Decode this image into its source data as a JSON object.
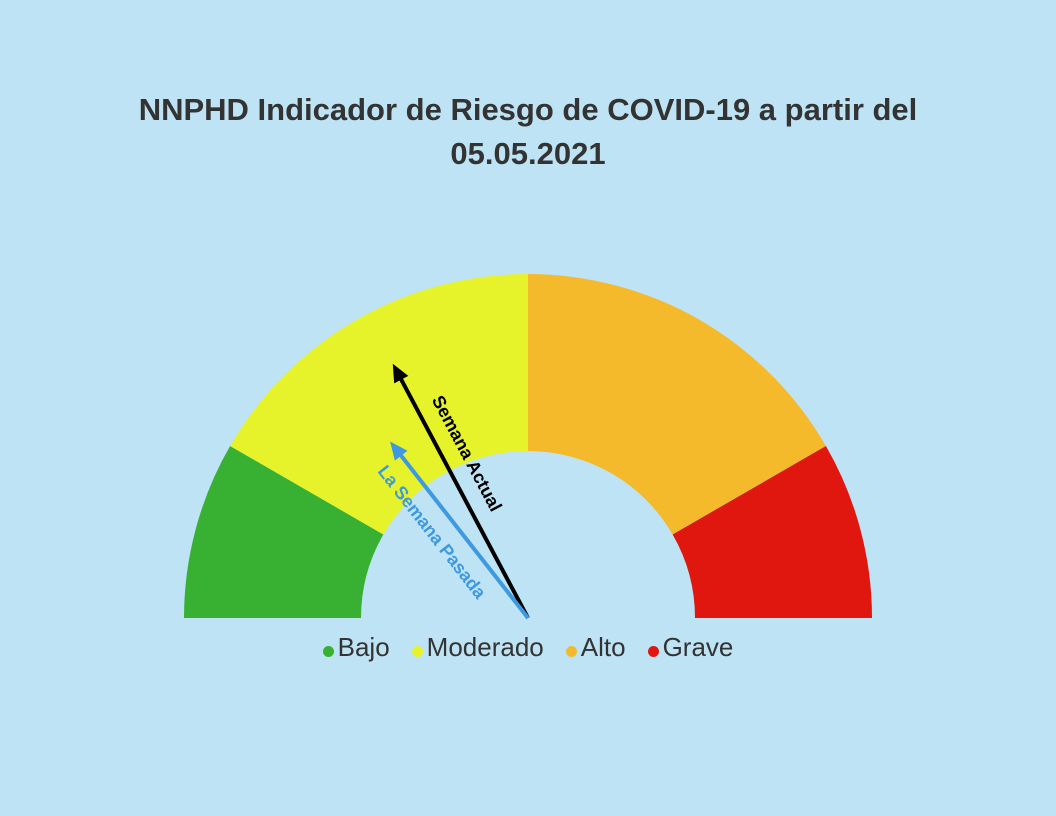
{
  "chart_data": {
    "type": "gauge",
    "title": "NNPHD Indicador de Riesgo de COVID-19 a partir del 05.05.2021",
    "categories": [
      "Bajo",
      "Moderado",
      "Alto",
      "Grave"
    ],
    "values": [
      30,
      60,
      60,
      30
    ],
    "colors": [
      "#38b133",
      "#e6f22a",
      "#f5ba2c",
      "#df170f"
    ],
    "needles": [
      {
        "name": "Semana Actual",
        "value": 62,
        "color": "#000000"
      },
      {
        "name": "La Semana Pasada",
        "value": 52,
        "color": "#3d99e0"
      }
    ]
  }
}
